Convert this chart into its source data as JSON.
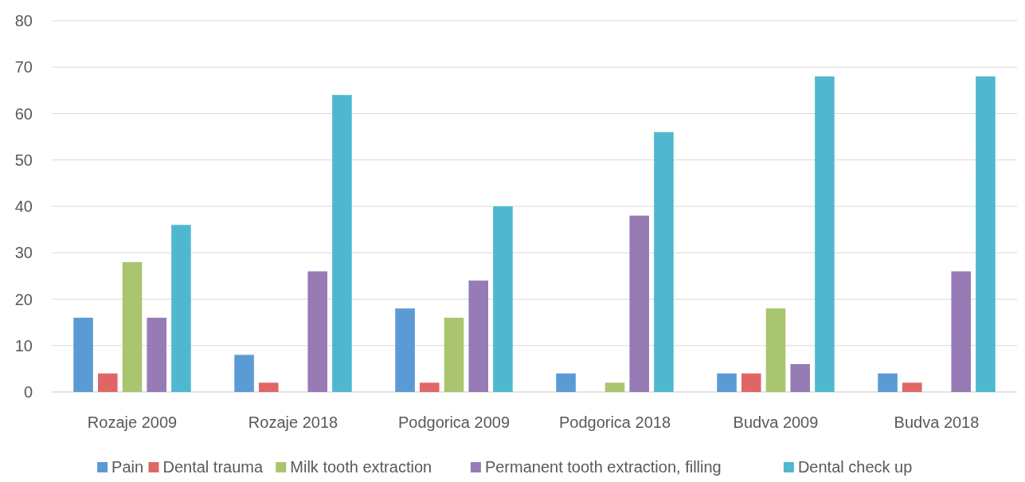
{
  "chart_data": {
    "type": "bar",
    "categories": [
      "Rozaje 2009",
      "Rozaje 2018",
      "Podgorica 2009",
      "Podgorica 2018",
      "Budva 2009",
      "Budva 2018"
    ],
    "series": [
      {
        "name": "Pain",
        "color": "#5b9bd5",
        "values": [
          16,
          8,
          18,
          4,
          4,
          4
        ]
      },
      {
        "name": "Dental trauma",
        "color": "#e06666",
        "values": [
          4,
          2,
          2,
          0,
          4,
          2
        ]
      },
      {
        "name": "Milk tooth extraction",
        "color": "#a9c56f",
        "values": [
          28,
          0,
          16,
          2,
          18,
          0
        ]
      },
      {
        "name": "Permanent tooth extraction, filling",
        "color": "#977bb5",
        "values": [
          16,
          26,
          24,
          38,
          6,
          26
        ]
      },
      {
        "name": "Dental check up",
        "color": "#4fb8d0",
        "values": [
          36,
          64,
          40,
          56,
          68,
          68
        ]
      }
    ],
    "ylim": [
      0,
      80
    ],
    "yticks": [
      0,
      10,
      20,
      30,
      40,
      50,
      60,
      70,
      80
    ],
    "grid": "y",
    "legend": "bottom"
  }
}
